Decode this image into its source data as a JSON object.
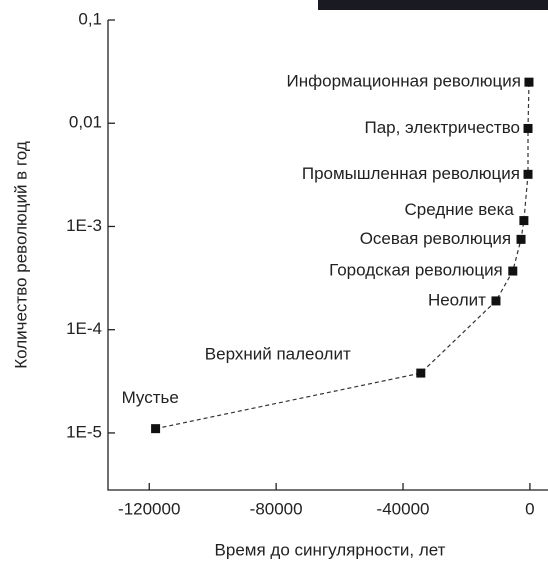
{
  "chart_data": {
    "type": "scatter",
    "x_label": "Время до сингулярности, лет",
    "y_label": "Количество революций в год",
    "y_log": true,
    "color": "#111111",
    "xlim": [
      -133000,
      5700
    ],
    "ylim": [
      2.8e-06,
      0.1
    ],
    "xticks": [
      -120000,
      -80000,
      -40000,
      0
    ],
    "yticks": [
      {
        "value": 0.1,
        "label": "0,1"
      },
      {
        "value": 0.01,
        "label": "0,01"
      },
      {
        "value": 0.001,
        "label": "1E-3"
      },
      {
        "value": 0.0001,
        "label": "1E-4"
      },
      {
        "value": 1e-05,
        "label": "1E-5"
      }
    ],
    "point_labels": [
      "Мустье",
      "Верхний палеолит",
      "Неолит",
      "Городская революция",
      "Осевая революция",
      "Средние века",
      "Промышленная революция",
      "Пар, электричество",
      "Информационная революция"
    ],
    "x": [
      -118000,
      -34400,
      -10700,
      -5400,
      -2800,
      -1900,
      -600,
      -600,
      -300
    ],
    "values": [
      1.1e-05,
      3.8e-05,
      0.00019,
      0.00037,
      0.00075,
      0.00114,
      0.0032,
      0.0089,
      0.025
    ]
  }
}
